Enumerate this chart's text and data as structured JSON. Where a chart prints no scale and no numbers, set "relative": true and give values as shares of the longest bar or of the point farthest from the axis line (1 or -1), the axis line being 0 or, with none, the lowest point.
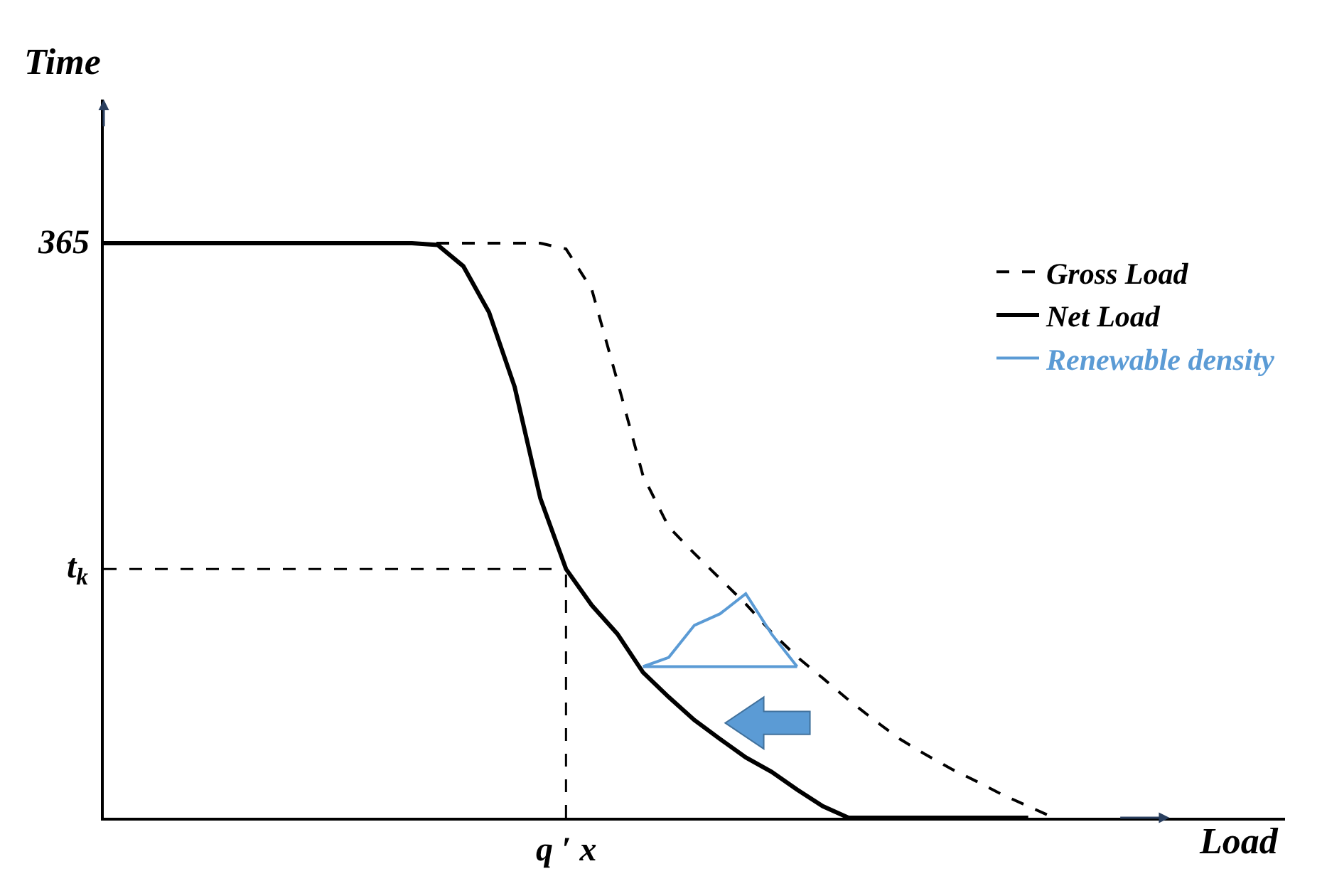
{
  "chart_data": {
    "type": "line",
    "relative": true,
    "xlabel": "Load",
    "ylabel": "Time",
    "legend": "top right",
    "categories": [
      null,
      null,
      null,
      null,
      null,
      null,
      null,
      null,
      null,
      null,
      null,
      null,
      null,
      null,
      null,
      null,
      null,
      null,
      null,
      null,
      null,
      null,
      null,
      null,
      null,
      null,
      null,
      null,
      null,
      null,
      null,
      null,
      null,
      null,
      null,
      null,
      null,
      null,
      null,
      null,
      null
    ],
    "annotations": [
      "365",
      "q ′ x"
    ],
    "series": [
      {
        "name": "Gross Load",
        "color": "#000000",
        "line_style": "dashed",
        "values": [
          1,
          1,
          1,
          1,
          1,
          1,
          1,
          1,
          1,
          1,
          1,
          1,
          1,
          1,
          1,
          1,
          1,
          1,
          0.99,
          0.92,
          0.76,
          0.595,
          0.506,
          0.46,
          0.416,
          0.372,
          0.323,
          0.28,
          0.243,
          0.205,
          0.17,
          0.137,
          0.11,
          0.085,
          0.063,
          0.04,
          0.02,
          0,
          null,
          null,
          null
        ]
      },
      {
        "name": "Net Load",
        "color": "#000000",
        "line_style": "solid",
        "values": [
          1,
          1,
          1,
          1,
          1,
          1,
          1,
          1,
          1,
          1,
          1,
          1,
          1,
          0.997,
          0.96,
          0.88,
          0.75,
          0.556,
          0.433,
          0.37,
          0.32,
          0.253,
          0.21,
          0.17,
          0.137,
          0.105,
          0.08,
          0.049,
          0.02,
          0,
          0,
          0,
          0,
          0,
          0,
          0,
          0,
          null,
          null,
          null,
          null
        ]
      },
      {
        "name": "Renewable density",
        "color": "#5b9bd5",
        "line_style": "solid",
        "values": [
          null,
          null,
          null,
          null,
          null,
          null,
          null,
          null,
          null,
          null,
          null,
          null,
          null,
          null,
          null,
          null,
          null,
          null,
          null,
          null,
          null,
          0.263,
          0.279,
          0.335,
          0.355,
          0.39,
          0.32,
          0.263,
          null,
          null,
          null,
          null,
          null,
          null,
          null,
          null,
          null,
          null,
          null,
          null,
          null
        ]
      },
      {
        "color": "#5b9bd5",
        "line_style": "solid",
        "values": [
          null,
          null,
          null,
          null,
          null,
          null,
          null,
          null,
          null,
          null,
          null,
          null,
          null,
          null,
          null,
          null,
          null,
          null,
          null,
          null,
          null,
          0.263,
          0.263,
          0.263,
          0.263,
          0.263,
          0.263,
          0.263,
          null,
          null,
          null,
          null,
          null,
          null,
          null,
          null,
          null,
          null,
          null,
          null,
          null
        ]
      }
    ],
    "ref_lines": [
      {
        "axis": "y",
        "value": 0.433,
        "label": "t$_{k}$",
        "line_style": "dashed",
        "color": "#000000"
      }
    ]
  }
}
